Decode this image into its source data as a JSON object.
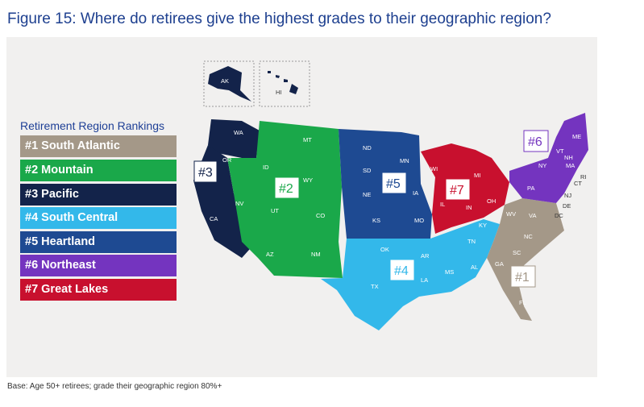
{
  "title": "Figure 15: Where do retirees give the highest grades to their geographic region?",
  "legend": {
    "title": "Retirement Region Rankings",
    "items": [
      {
        "label": "#1 South Atlantic",
        "color": "#a49888"
      },
      {
        "label": "#2 Mountain",
        "color": "#1aa84a"
      },
      {
        "label": "#3 Pacific",
        "color": "#13234a"
      },
      {
        "label": "#4 South Central",
        "color": "#33b8ea"
      },
      {
        "label": "#5 Heartland",
        "color": "#1e4a92"
      },
      {
        "label": "#6 Northeast",
        "color": "#7434bf"
      },
      {
        "label": "#7 Great Lakes",
        "color": "#c8102e"
      }
    ]
  },
  "map_labels": {
    "rank1": "#1",
    "rank2": "#2",
    "rank3": "#3",
    "rank4": "#4",
    "rank5": "#5",
    "rank6": "#6",
    "rank7": "#7",
    "states": {
      "AK": "AK",
      "HI": "HI",
      "WA": "WA",
      "OR": "OR",
      "CA": "CA",
      "ID": "ID",
      "NV": "NV",
      "MT": "MT",
      "WY": "WY",
      "UT": "UT",
      "CO": "CO",
      "AZ": "AZ",
      "NM": "NM",
      "ND": "ND",
      "SD": "SD",
      "NE": "NE",
      "KS": "KS",
      "MN": "MN",
      "IA": "IA",
      "MO": "MO",
      "OK": "OK",
      "TX": "TX",
      "AR": "AR",
      "LA": "LA",
      "MS": "MS",
      "AL": "AL",
      "TN": "TN",
      "KY": "KY",
      "WI": "WI",
      "MI": "MI",
      "IL": "IL",
      "IN": "IN",
      "OH": "OH",
      "WV": "WV",
      "VA": "VA",
      "NC": "NC",
      "SC": "SC",
      "GA": "GA",
      "FL": "FL",
      "DC": "DC",
      "DE": "DE",
      "PA": "PA",
      "NY": "NY",
      "VT": "VT",
      "NH": "NH",
      "ME": "ME",
      "MA": "MA",
      "RI": "RI",
      "CT": "CT",
      "NJ": "NJ"
    }
  },
  "note": "Base: Age 50+ retirees; grade their geographic region 80%+"
}
